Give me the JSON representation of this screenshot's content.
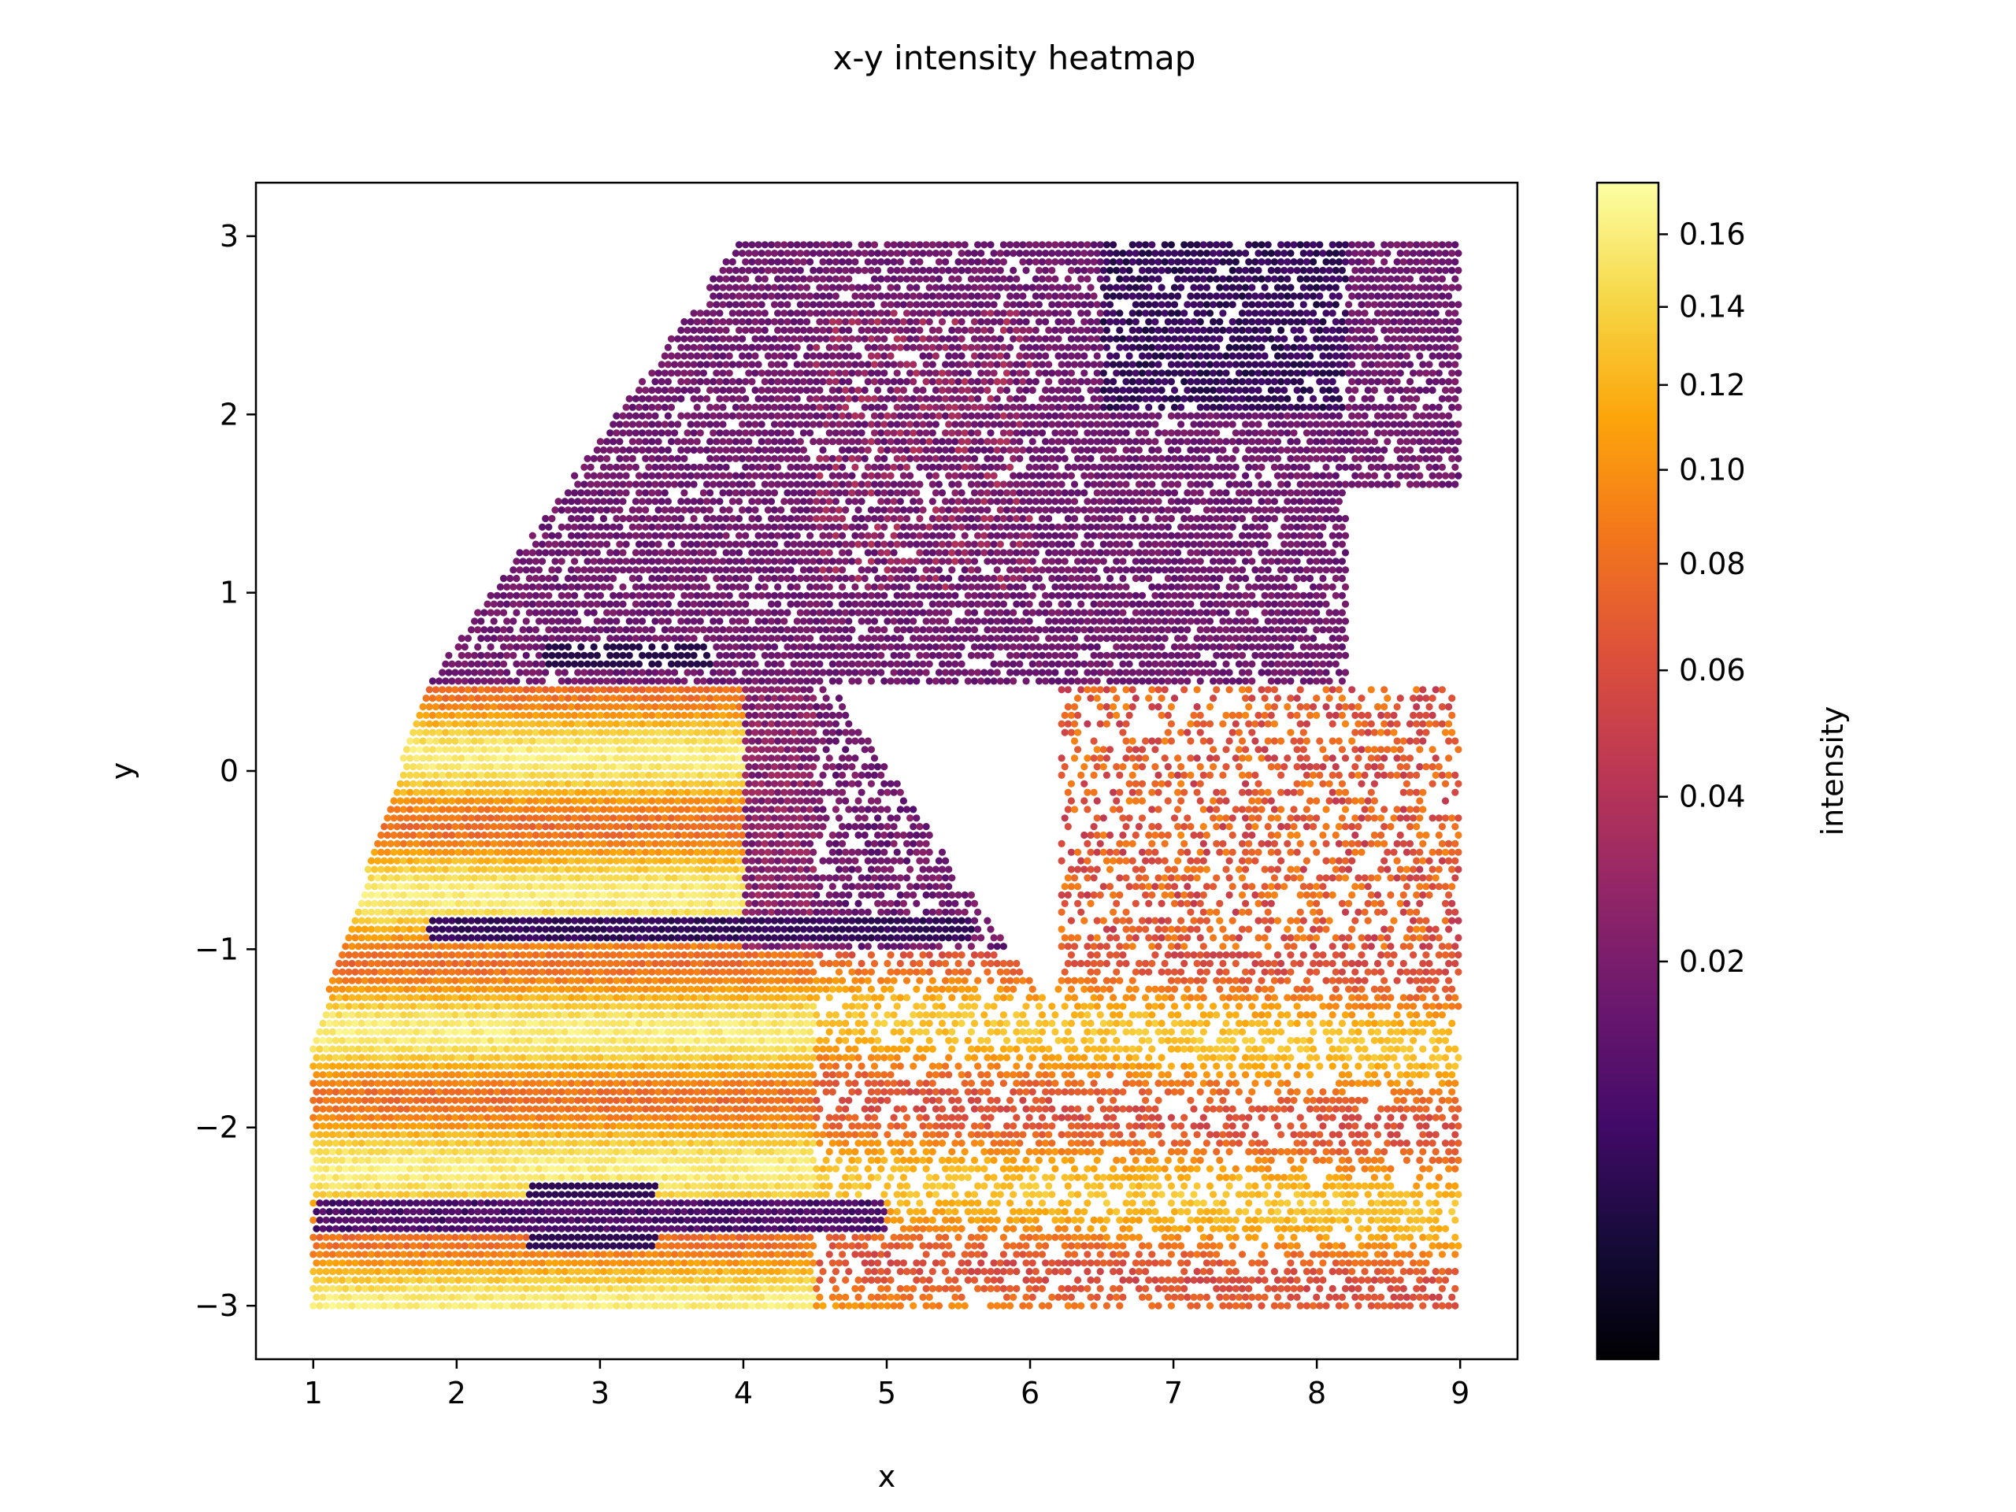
{
  "chart_data": {
    "type": "heatmap",
    "title": "x-y intensity heatmap",
    "xlabel": "x",
    "ylabel": "y",
    "xlim": [
      0.6,
      9.4
    ],
    "ylim": [
      -3.3,
      3.3
    ],
    "x_ticks": [
      1,
      2,
      3,
      4,
      5,
      6,
      7,
      8,
      9
    ],
    "y_ticks": [
      -3,
      -2,
      -1,
      0,
      1,
      2,
      3
    ],
    "x_tick_labels": [
      "1",
      "2",
      "3",
      "4",
      "5",
      "6",
      "7",
      "8",
      "9"
    ],
    "y_tick_labels": [
      "−3",
      "−2",
      "−1",
      "0",
      "1",
      "2",
      "3"
    ],
    "colormap": "inferno",
    "colorbar": {
      "label": "intensity",
      "scale": "sqrt",
      "vmin": 0.0,
      "vmax": 0.175,
      "ticks": [
        0.02,
        0.04,
        0.06,
        0.08,
        0.1,
        0.12,
        0.14,
        0.16
      ],
      "tick_labels": [
        "0.02",
        "0.04",
        "0.06",
        "0.08",
        "0.10",
        "0.12",
        "0.14",
        "0.16"
      ]
    },
    "regions": [
      {
        "name": "upper band",
        "y_range": [
          0.5,
          3.0
        ],
        "x_at_y_top": [
          4.0,
          9.0
        ],
        "x_at_y_bottom": [
          1.8,
          9.0
        ],
        "typical_intensity": 0.015
      },
      {
        "name": "upper-right dark patch",
        "x_range": [
          6.5,
          8.2
        ],
        "y_range": [
          2.0,
          3.0
        ],
        "typical_intensity": 0.003
      },
      {
        "name": "dark stripe",
        "x_range": [
          2.7,
          3.8
        ],
        "y": 0.65,
        "typical_intensity": 0.004
      },
      {
        "name": "left bright bands",
        "x_range": [
          1.0,
          4.5
        ],
        "y_range": [
          -3.0,
          0.5
        ],
        "typical_intensity": 0.12
      },
      {
        "name": "dark stripe",
        "x_range": [
          1.8,
          5.5
        ],
        "y": -0.9,
        "typical_intensity": 0.004
      },
      {
        "name": "dark stripe",
        "x_range": [
          1.0,
          5.0
        ],
        "y": -2.5,
        "typical_intensity": 0.006
      },
      {
        "name": "right middle patches",
        "x_range": [
          5.5,
          9.0
        ],
        "y_range": [
          -1.8,
          1.4
        ],
        "typical_intensity": 0.07
      },
      {
        "name": "lower right streaks",
        "x_range": [
          4.5,
          9.0
        ],
        "y_range": [
          -3.0,
          -1.0
        ],
        "typical_intensity": 0.1
      }
    ]
  }
}
